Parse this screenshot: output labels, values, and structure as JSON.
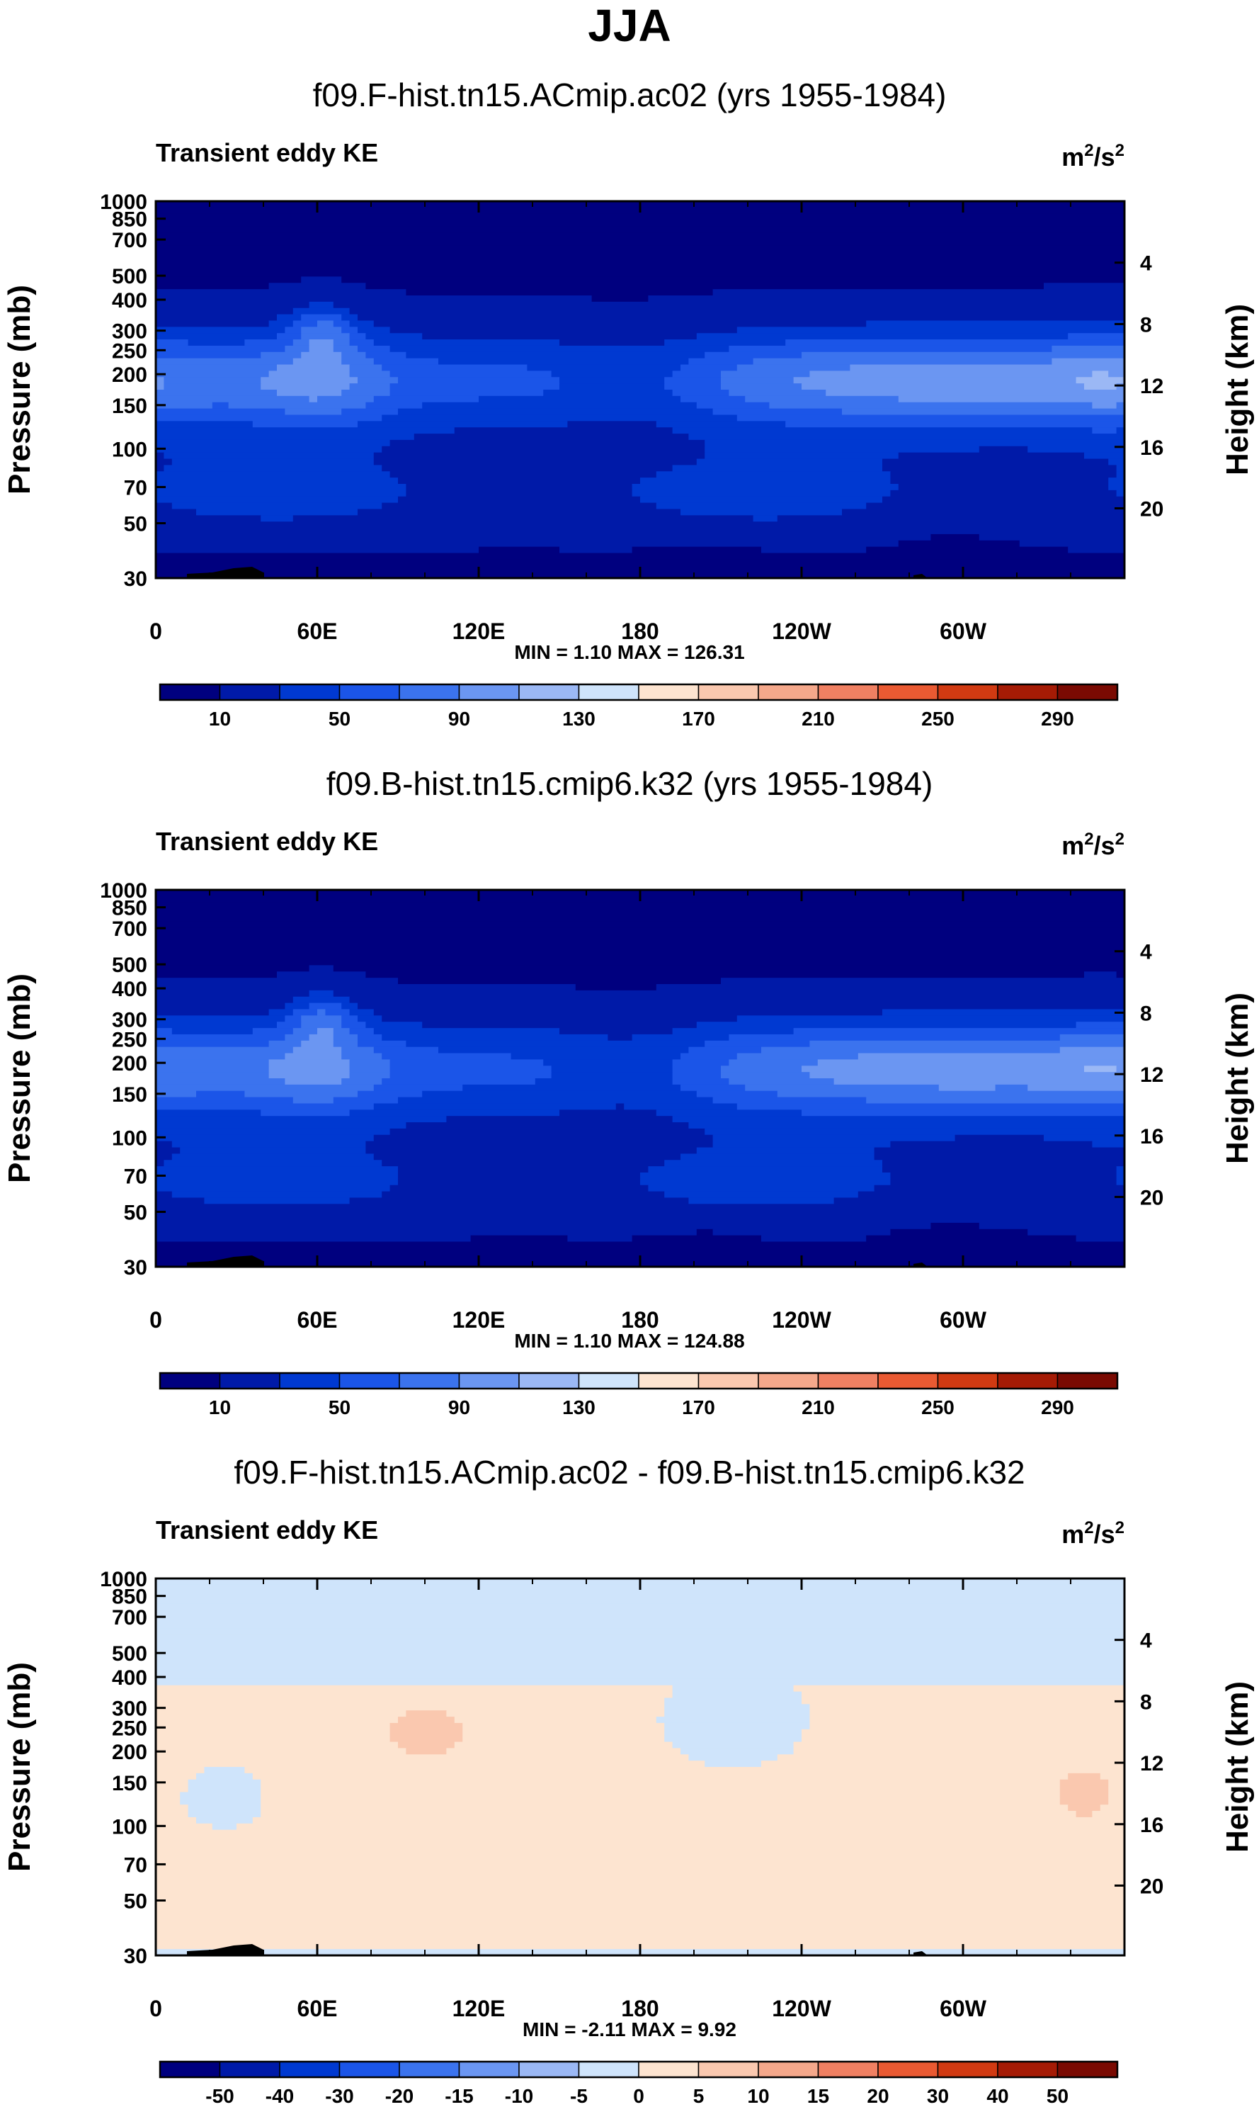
{
  "title": "JJA",
  "colors": {
    "abs_levels": [
      "#00007f",
      "#001aa8",
      "#0039d1",
      "#1b55e8",
      "#3b73ee",
      "#6b96f2",
      "#9bb8f5",
      "#cfe4fb",
      "#fde4d0",
      "#fac8af",
      "#f5a88b",
      "#f08062",
      "#ea5a32",
      "#d13a12",
      "#a51b05",
      "#7a0a02"
    ],
    "diff_levels": [
      "#00007f",
      "#001aa8",
      "#0039d1",
      "#1b55e8",
      "#3b73ee",
      "#6b96f2",
      "#9bb8f5",
      "#cfe4fb",
      "#fde4d0",
      "#fac8af",
      "#f5a88b",
      "#f08062",
      "#ea5a32",
      "#d13a12",
      "#a51b05",
      "#7a0a02"
    ]
  },
  "chart_data": [
    {
      "type": "contour",
      "title": "f09.F-hist.tn15.ACmip.ac02 (yrs 1955-1984)",
      "variable_label": "Transient eddy KE",
      "units_base": "m",
      "units_exp": "2",
      "units_tail": "/s",
      "units_exp2": "2",
      "ylabel": "Pressure (mb)",
      "y2label": "Height (km)",
      "xticks": [
        "0",
        "60E",
        "120E",
        "180",
        "120W",
        "60W"
      ],
      "yticks": [
        "30",
        "50",
        "70",
        "100",
        "150",
        "200",
        "250",
        "300",
        "400",
        "500",
        "700",
        "850",
        "1000"
      ],
      "y2ticks": [
        "20",
        "16",
        "12",
        "8",
        "4"
      ],
      "ylim": [
        1000,
        30
      ],
      "min": 1.1,
      "max": 126.31,
      "stats_text": "MIN =   1.10   MAX = 126.31",
      "colorbar_labels": [
        "10",
        "50",
        "90",
        "130",
        "170",
        "210",
        "250",
        "290"
      ],
      "colorbar_levels": [
        10,
        30,
        50,
        70,
        90,
        110,
        130,
        150,
        170,
        190,
        210,
        230,
        250,
        270,
        290
      ]
    },
    {
      "type": "contour",
      "title": "f09.B-hist.tn15.cmip6.k32 (yrs 1955-1984)",
      "variable_label": "Transient eddy KE",
      "units_base": "m",
      "units_exp": "2",
      "units_tail": "/s",
      "units_exp2": "2",
      "ylabel": "Pressure (mb)",
      "y2label": "Height (km)",
      "xticks": [
        "0",
        "60E",
        "120E",
        "180",
        "120W",
        "60W"
      ],
      "yticks": [
        "30",
        "50",
        "70",
        "100",
        "150",
        "200",
        "250",
        "300",
        "400",
        "500",
        "700",
        "850",
        "1000"
      ],
      "y2ticks": [
        "20",
        "16",
        "12",
        "8",
        "4"
      ],
      "ylim": [
        1000,
        30
      ],
      "min": 1.1,
      "max": 124.88,
      "stats_text": "MIN =   1.10   MAX = 124.88",
      "colorbar_labels": [
        "10",
        "50",
        "90",
        "130",
        "170",
        "210",
        "250",
        "290"
      ],
      "colorbar_levels": [
        10,
        30,
        50,
        70,
        90,
        110,
        130,
        150,
        170,
        190,
        210,
        230,
        250,
        270,
        290
      ]
    },
    {
      "type": "contour",
      "title": "f09.F-hist.tn15.ACmip.ac02 - f09.B-hist.tn15.cmip6.k32",
      "variable_label": "Transient eddy KE",
      "units_base": "m",
      "units_exp": "2",
      "units_tail": "/s",
      "units_exp2": "2",
      "ylabel": "Pressure (mb)",
      "y2label": "Height (km)",
      "xticks": [
        "0",
        "60E",
        "120E",
        "180",
        "120W",
        "60W"
      ],
      "yticks": [
        "30",
        "50",
        "70",
        "100",
        "150",
        "200",
        "250",
        "300",
        "400",
        "500",
        "700",
        "850",
        "1000"
      ],
      "y2ticks": [
        "20",
        "16",
        "12",
        "8",
        "4"
      ],
      "ylim": [
        1000,
        30
      ],
      "min": -2.11,
      "max": 9.92,
      "stats_text": "MIN =  -2.11   MAX =   9.92",
      "colorbar_labels": [
        "-50",
        "-40",
        "-30",
        "-20",
        "-15",
        "-10",
        "-5",
        "0",
        "5",
        "10",
        "15",
        "20",
        "30",
        "40",
        "50"
      ],
      "colorbar_levels": [
        -50,
        -40,
        -30,
        -20,
        -15,
        -10,
        -5,
        0,
        5,
        10,
        15,
        20,
        30,
        40,
        50
      ]
    }
  ]
}
